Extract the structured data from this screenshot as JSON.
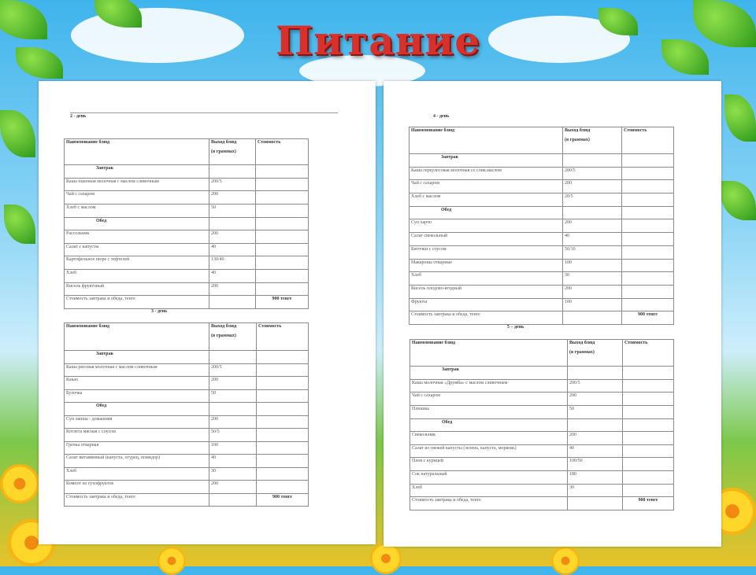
{
  "title": "Питание",
  "columns": {
    "name": "Наименование блюд",
    "yield_1": "Выход блюд",
    "yield_2": "(в граммах)",
    "cost": "Стоимость"
  },
  "days": [
    {
      "label": "2 - день",
      "rows": [
        {
          "type": "section",
          "name": "Завтрак"
        },
        {
          "name": "Каша пшенная молочная с маслом сливочным",
          "yield": "200/5"
        },
        {
          "name": "Чай с сахаром",
          "yield": "200"
        },
        {
          "name": "Хлеб с маслом",
          "yield": "50"
        },
        {
          "type": "section",
          "name": "Обед"
        },
        {
          "name": "Рассольник",
          "yield": "200"
        },
        {
          "name": "Салат с капусты",
          "yield": "40"
        },
        {
          "name": "Картофельное пюре с тефтелей",
          "yield": "130/40"
        },
        {
          "name": "Хлеб",
          "yield": "40"
        },
        {
          "name": "Кисель фруктовый",
          "yield": "200"
        },
        {
          "type": "total",
          "name": "Стоимость завтрака и обеда, тенге",
          "cost": "900 тенге"
        }
      ]
    },
    {
      "label": "3 - день",
      "rows": [
        {
          "type": "section",
          "name": "Завтрак"
        },
        {
          "name": "Каша рисовая молочная с маслом сливочным",
          "yield": "200/5"
        },
        {
          "name": "Какао",
          "yield": "200"
        },
        {
          "name": "Булочка",
          "yield": "50"
        },
        {
          "type": "section",
          "name": "Обед"
        },
        {
          "name": "Суп лапша -  домашняя",
          "yield": "200"
        },
        {
          "name": "Котлета мясная с соусом",
          "yield": "50/5"
        },
        {
          "name": "Гречка отварная",
          "yield": "100"
        },
        {
          "name": "Салат витаминный (капуста, огурец, помидор)",
          "yield": "40"
        },
        {
          "name": "Хлеб",
          "yield": "30"
        },
        {
          "name": "Компот из сухофруктов",
          "yield": "200"
        },
        {
          "type": "total",
          "name": "Стоимость завтрака и обеда, тенге",
          "cost": "900 тенге"
        }
      ]
    },
    {
      "label": "4 - день",
      "rows": [
        {
          "type": "section",
          "name": "Завтрак"
        },
        {
          "name": "Каша геркулесовая молочная со слив.маслом",
          "yield": "200/5"
        },
        {
          "name": "Чай  с сахаром",
          "yield": "200"
        },
        {
          "name": "Хлеб с маслом",
          "yield": "20/5"
        },
        {
          "type": "section",
          "name": "Обед"
        },
        {
          "name": "Суп харчо",
          "yield": "200"
        },
        {
          "name": "Салат свекольный",
          "yield": "40"
        },
        {
          "name": "Биточки с соусом",
          "yield": "50/10"
        },
        {
          "name": "Макароны  отварные",
          "yield": "100"
        },
        {
          "name": "Хлеб",
          "yield": "30"
        },
        {
          "name": "Кисель плодово-ягодный",
          "yield": "200"
        },
        {
          "name": "Фрукты",
          "yield": "100"
        },
        {
          "type": "total",
          "name": "Стоимость завтрака и обеда, тенге",
          "cost": "900 тенге"
        }
      ]
    },
    {
      "label": "5 – день",
      "rows": [
        {
          "type": "section",
          "name": "Завтрак"
        },
        {
          "name": "Каша молочная «Дружба»  с маслом сливочным",
          "yield": "200/5"
        },
        {
          "name": "Чай с сахаром",
          "yield": "200"
        },
        {
          "name": "Плюшка",
          "yield": "50"
        },
        {
          "type": "section",
          "name": "Обед"
        },
        {
          "name": "Свекольник",
          "yield": "200"
        },
        {
          "name": "Салат из свежей капусты (зелень, капуста, морковь)",
          "yield": "40"
        },
        {
          "name": "Плов с курицей",
          "yield": "100/50"
        },
        {
          "name": "Сок натуральный",
          "yield": "180"
        },
        {
          "name": "Хлеб",
          "yield": "30"
        },
        {
          "type": "total",
          "name": "Стоимость завтрака и обеда, тенге",
          "cost": "900 тенге"
        }
      ]
    }
  ]
}
